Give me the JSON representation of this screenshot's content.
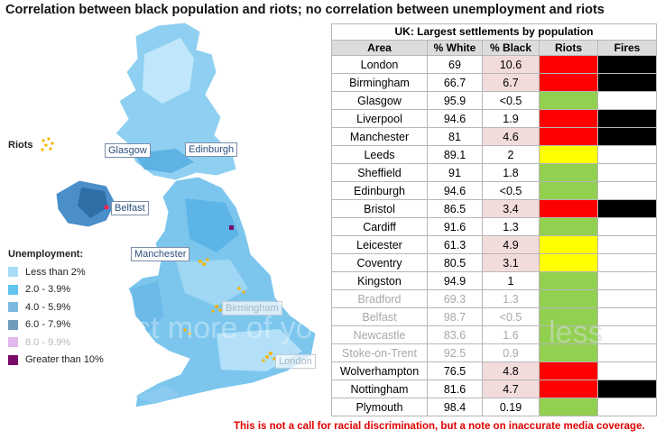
{
  "headline": "Correlation between black population and riots; no correlation between unemployment and riots",
  "map": {
    "labels": [
      {
        "name": "glasgow",
        "text": "Glasgow",
        "faded": false
      },
      {
        "name": "edinburgh",
        "text": "Edinburgh",
        "faded": false
      },
      {
        "name": "belfast",
        "text": "Belfast",
        "faded": false
      },
      {
        "name": "manchester",
        "text": "Manchester",
        "faded": false
      },
      {
        "name": "birmingham",
        "text": "Birmingham",
        "faded": true
      },
      {
        "name": "london",
        "text": "London",
        "faded": true
      }
    ],
    "riots_legend": "Riots",
    "riot_dot_color": "#f3b400",
    "unemployment": {
      "title": "Unemployment:",
      "items": [
        {
          "label": "Less than 2%",
          "color": "#a7ddf7",
          "faded": false
        },
        {
          "label": "2.0 - 3.9%",
          "color": "#63c4f0",
          "faded": false
        },
        {
          "label": "4.0 - 5.9%",
          "color": "#7db9de",
          "faded": false
        },
        {
          "label": "6.0 - 7.9%",
          "color": "#6f9bbd",
          "faded": false
        },
        {
          "label": "8.0 - 9.9%",
          "color": "#e3b6ec",
          "faded": true
        },
        {
          "label": "Greater than 10%",
          "color": "#7a0a6a",
          "faded": false
        }
      ]
    }
  },
  "table": {
    "title": "UK: Largest settlements by population",
    "columns": [
      "Area",
      "% White",
      "% Black",
      "Riots",
      "Fires"
    ],
    "colors": {
      "red": "#ff0000",
      "yellow": "#ffff00",
      "green": "#92d050",
      "black": "#000000",
      "pink": "#f2dcdb",
      "white": "#ffffff"
    },
    "rows": [
      {
        "area": "London",
        "white": "69",
        "black": "10.6",
        "black_shade": "pink",
        "riots": "red",
        "fires": "black",
        "faded": false
      },
      {
        "area": "Birmingham",
        "white": "66.7",
        "black": "6.7",
        "black_shade": "pink",
        "riots": "red",
        "fires": "black",
        "faded": false
      },
      {
        "area": "Glasgow",
        "white": "95.9",
        "black": "<0.5",
        "black_shade": "white",
        "riots": "green",
        "fires": "white",
        "faded": false
      },
      {
        "area": "Liverpool",
        "white": "94.6",
        "black": "1.9",
        "black_shade": "white",
        "riots": "red",
        "fires": "black",
        "faded": false
      },
      {
        "area": "Manchester",
        "white": "81",
        "black": "4.6",
        "black_shade": "pink",
        "riots": "red",
        "fires": "black",
        "faded": false
      },
      {
        "area": "Leeds",
        "white": "89.1",
        "black": "2",
        "black_shade": "white",
        "riots": "yellow",
        "fires": "white",
        "faded": false
      },
      {
        "area": "Sheffield",
        "white": "91",
        "black": "1.8",
        "black_shade": "white",
        "riots": "green",
        "fires": "white",
        "faded": false
      },
      {
        "area": "Edinburgh",
        "white": "94.6",
        "black": "<0.5",
        "black_shade": "white",
        "riots": "green",
        "fires": "white",
        "faded": false
      },
      {
        "area": "Bristol",
        "white": "86.5",
        "black": "3.4",
        "black_shade": "pink",
        "riots": "red",
        "fires": "black",
        "faded": false
      },
      {
        "area": "Cardiff",
        "white": "91.6",
        "black": "1.3",
        "black_shade": "white",
        "riots": "green",
        "fires": "white",
        "faded": false
      },
      {
        "area": "Leicester",
        "white": "61.3",
        "black": "4.9",
        "black_shade": "pink",
        "riots": "yellow",
        "fires": "white",
        "faded": false
      },
      {
        "area": "Coventry",
        "white": "80.5",
        "black": "3.1",
        "black_shade": "pink",
        "riots": "yellow",
        "fires": "white",
        "faded": false
      },
      {
        "area": "Kingston",
        "white": "94.9",
        "black": "1",
        "black_shade": "white",
        "riots": "green",
        "fires": "white",
        "faded": false
      },
      {
        "area": "Bradford",
        "white": "69.3",
        "black": "1.3",
        "black_shade": "white",
        "riots": "green",
        "fires": "white",
        "faded": true
      },
      {
        "area": "Belfast",
        "white": "98.7",
        "black": "<0.5",
        "black_shade": "white",
        "riots": "green",
        "fires": "white",
        "faded": true
      },
      {
        "area": "Newcastle",
        "white": "83.6",
        "black": "1.6",
        "black_shade": "white",
        "riots": "green",
        "fires": "white",
        "faded": true
      },
      {
        "area": "Stoke-on-Trent",
        "white": "92.5",
        "black": "0.9",
        "black_shade": "white",
        "riots": "green",
        "fires": "white",
        "faded": true
      },
      {
        "area": "Wolverhampton",
        "white": "76.5",
        "black": "4.8",
        "black_shade": "pink",
        "riots": "red",
        "fires": "white",
        "faded": false
      },
      {
        "area": "Nottingham",
        "white": "81.6",
        "black": "4.7",
        "black_shade": "pink",
        "riots": "red",
        "fires": "black",
        "faded": false
      },
      {
        "area": "Plymouth",
        "white": "98.4",
        "black": "0.19",
        "black_shade": "white",
        "riots": "green",
        "fires": "white",
        "faded": false
      }
    ]
  },
  "disclaimer": "This is not a call for racial discrimination, but a note on inaccurate media coverage."
}
